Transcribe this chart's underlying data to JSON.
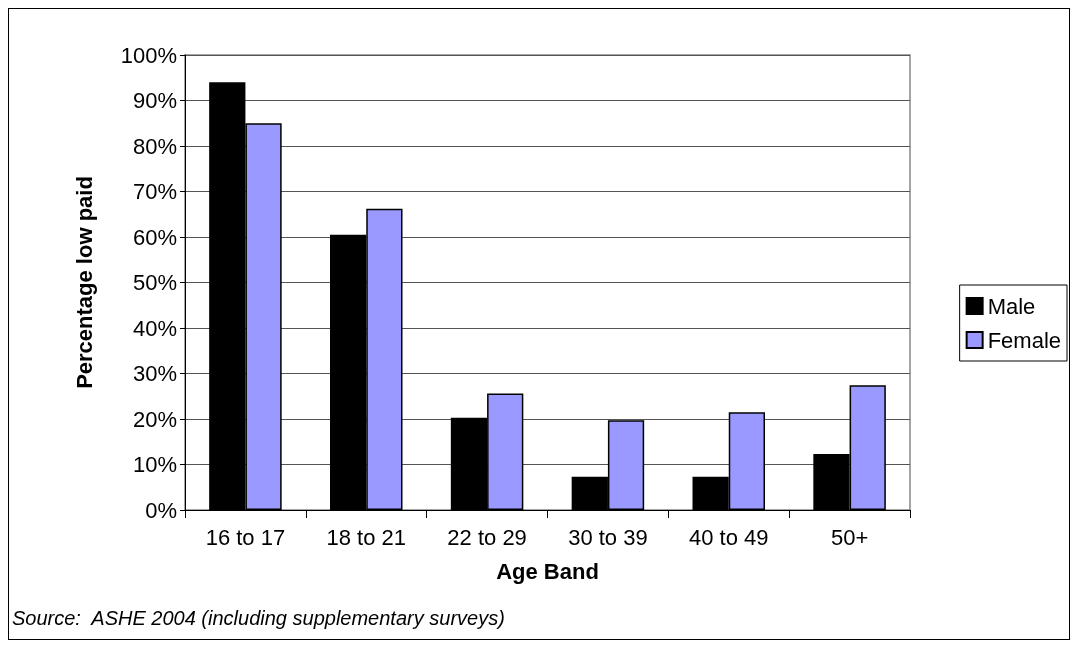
{
  "chart_data": {
    "type": "bar",
    "xlabel": "Age Band",
    "ylabel": "Percentage low paid",
    "categories": [
      "16 to 17",
      "18 to 21",
      "22 to 29",
      "30 to 39",
      "40 to 49",
      "50+"
    ],
    "series": [
      {
        "name": "Male",
        "color": "#000000",
        "values": [
          94,
          60.5,
          20.3,
          7.3,
          7.3,
          12.3
        ]
      },
      {
        "name": "Female",
        "color": "#9999ff",
        "values": [
          85,
          66.2,
          25.6,
          19.7,
          21.5,
          27.4
        ]
      }
    ],
    "ylim": [
      0,
      100
    ],
    "yticks": [
      {
        "value": 0,
        "label": "0%"
      },
      {
        "value": 10,
        "label": "10%"
      },
      {
        "value": 20,
        "label": "20%"
      },
      {
        "value": 30,
        "label": "30%"
      },
      {
        "value": 40,
        "label": "40%"
      },
      {
        "value": 50,
        "label": "50%"
      },
      {
        "value": 60,
        "label": "60%"
      },
      {
        "value": 70,
        "label": "70%"
      },
      {
        "value": 80,
        "label": "80%"
      },
      {
        "value": 90,
        "label": "90%"
      },
      {
        "value": 100,
        "label": "100%"
      }
    ],
    "grid": "y",
    "legend": "right",
    "annotations": [
      "Source:  ASHE 2004 (including supplementary surveys)"
    ]
  }
}
